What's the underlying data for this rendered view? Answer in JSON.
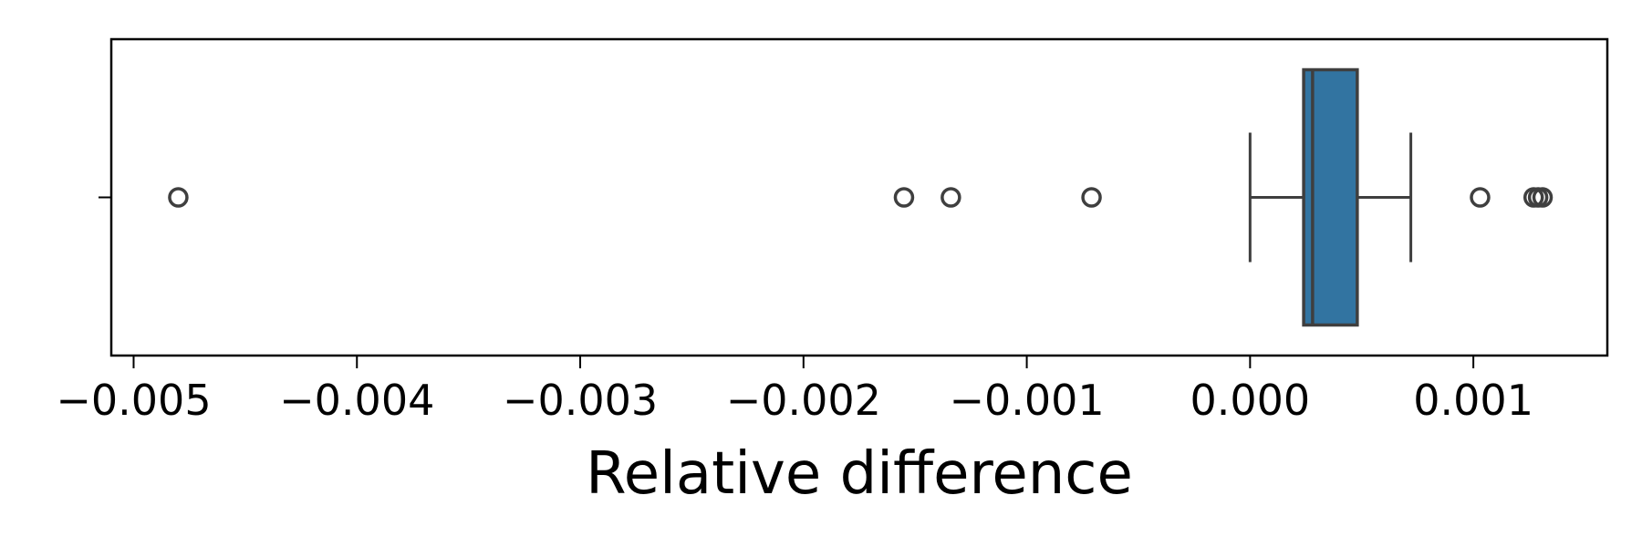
{
  "chart_data": {
    "type": "box",
    "orientation": "horizontal",
    "title": "",
    "xlabel": "Relative difference",
    "ylabel": "",
    "xlim": [
      -0.0051,
      0.0016
    ],
    "xticks": [
      -0.005,
      -0.004,
      -0.003,
      -0.002,
      -0.001,
      0.0,
      0.001
    ],
    "xtick_labels": [
      "−0.005",
      "−0.004",
      "−0.003",
      "−0.002",
      "−0.001",
      "0.000",
      "0.001"
    ],
    "grid": false,
    "series": [
      {
        "whisker_low": 0.0,
        "q1": 0.00024,
        "median": 0.00028,
        "q3": 0.00048,
        "whisker_high": 0.00072,
        "outliers": [
          -0.0048,
          -0.00155,
          -0.00134,
          -0.00071,
          0.00103,
          0.00127,
          0.00129,
          0.00131
        ]
      }
    ],
    "colors": {
      "box_fill": "#3274a1",
      "line": "#3f3f3f",
      "axis": "#000000"
    }
  }
}
